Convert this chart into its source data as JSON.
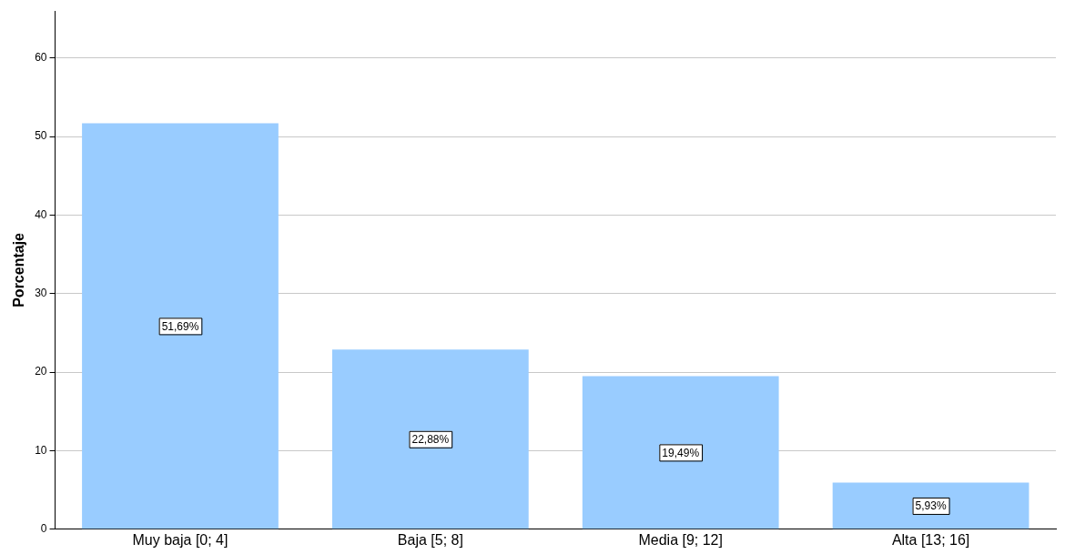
{
  "chart_data": {
    "type": "bar",
    "ylabel": "Porcentaje",
    "categories": [
      "Muy baja [0; 4]",
      "Baja [5; 8]",
      "Media [9; 12]",
      "Alta [13; 16]"
    ],
    "values": [
      51.69,
      22.88,
      19.49,
      5.93
    ],
    "value_labels": [
      "51,69%",
      "22,88%",
      "19,49%",
      "5,93%"
    ],
    "color": "#99ccff",
    "ylim": [
      0,
      66
    ],
    "yticks": [
      0,
      10,
      20,
      30,
      40,
      50,
      60
    ],
    "grid": "y",
    "legend": false
  }
}
